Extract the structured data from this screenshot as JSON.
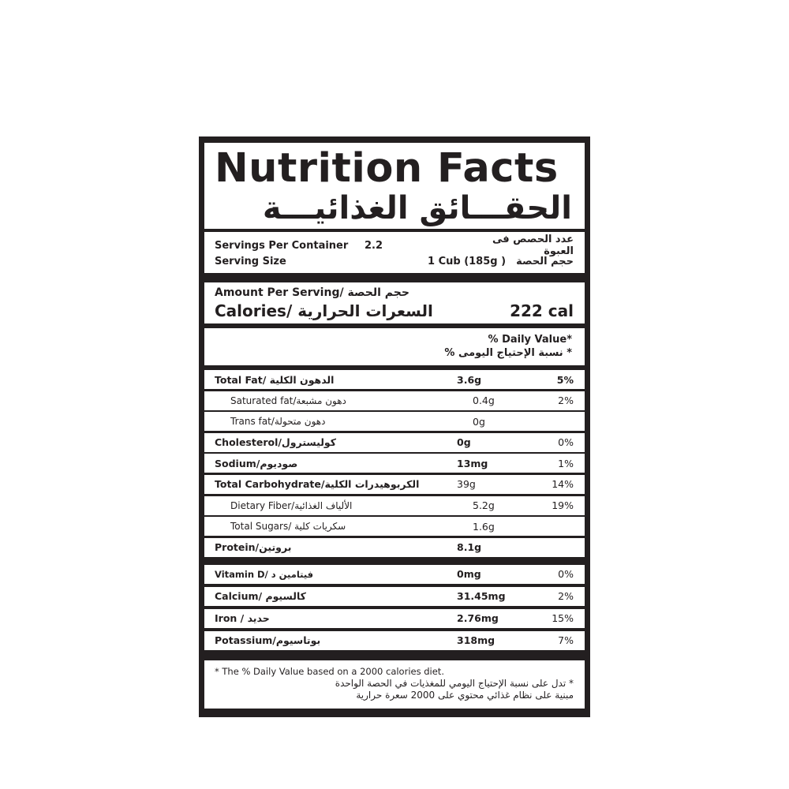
{
  "title": {
    "en": "Nutrition Facts",
    "ar": "الحقـــائق الغذائيـــة"
  },
  "servings": {
    "per_container_label": "Servings Per Container",
    "per_container_value": "2.2",
    "per_container_ar": "عدد الحصص فى العبوة",
    "size_label": "Serving Size",
    "size_value": "1 Cub (185g )",
    "size_ar": "حجم الحصة"
  },
  "amount": {
    "label": "Amount Per Serving/ حجم الحصة",
    "calories_label": "Calories/ السعرات الحرارية",
    "calories_value": "222 cal"
  },
  "daily_value": {
    "en": "% Daily Value*",
    "ar": "* نسبة الإحتياج اليومى %"
  },
  "nutrients": [
    {
      "name": "Total Fat/ الدهون الكلية",
      "amount": "3.6g",
      "pct": "5%"
    },
    {
      "name": "Saturated fat/دهون مشبعة",
      "amount": "0.4g",
      "pct": "2%"
    },
    {
      "name": "Trans fat/دهون متحولة",
      "amount": "0g",
      "pct": ""
    },
    {
      "name": "Cholesterol/كوليسترول",
      "amount": "0g",
      "pct": "0%"
    },
    {
      "name": "Sodium/صوديوم",
      "amount": "13mg",
      "pct": "1%"
    },
    {
      "name": "Total Carbohydrate/الكربوهيدرات الكلية",
      "amount": "39g",
      "pct": "14%"
    },
    {
      "name": "Dietary Fiber/الألياف الغذائية",
      "amount": "5.2g",
      "pct": "19%"
    },
    {
      "name": "Total Sugars/ سكريات كلية",
      "amount": "1.6g",
      "pct": ""
    },
    {
      "name": "Protein/بروتين",
      "amount": "8.1g",
      "pct": ""
    }
  ],
  "vitamins": [
    {
      "name": "Vitamin D/ فيتامين د",
      "amount": "0mg",
      "pct": "0%"
    },
    {
      "name": "Calcium/ كالسيوم",
      "amount": "31.45mg",
      "pct": "2%"
    },
    {
      "name": "Iron / حديد",
      "amount": "2.76mg",
      "pct": "15%"
    },
    {
      "name": "Potassium/بوتاسيوم",
      "amount": "318mg",
      "pct": "7%"
    }
  ],
  "footnote": {
    "en": "* The % Daily Value based on a 2000 calories diet.",
    "ar1": "* تدل على نسبة الإحتياج اليومي للمغذيات في الحصة الواحدة",
    "ar2": "مبنية على نظام غذائي محتوي على 2000 سعرة حرارية"
  },
  "colors": {
    "ink": "#231f20",
    "background": "#ffffff"
  }
}
